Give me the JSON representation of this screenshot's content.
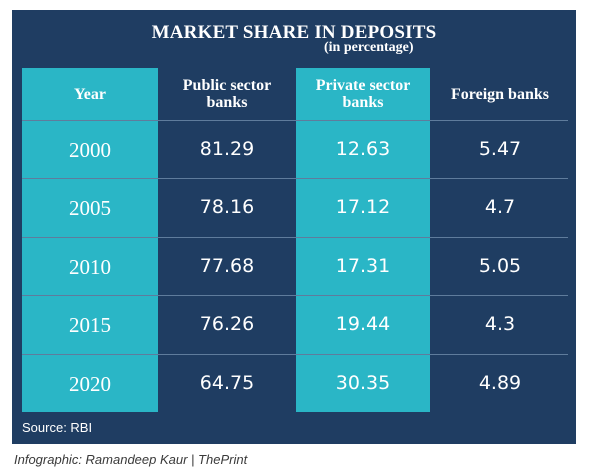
{
  "title": "MARKET SHARE IN DEPOSITS",
  "subtitle": "(in percentage)",
  "source": "Source: RBI",
  "credit": "Infographic: Ramandeep Kaur | ThePrint",
  "colors": {
    "panel": "#1f3d62",
    "accent_column": "#2ab6c6",
    "text": "#ffffff"
  },
  "chart_data": {
    "type": "table",
    "title": "MARKET SHARE IN DEPOSITS",
    "subtitle": "(in percentage)",
    "columns": [
      "Year",
      "Public sector banks",
      "Private sector banks",
      "Foreign banks"
    ],
    "header_lines": [
      [
        "Year"
      ],
      [
        "Public sector",
        "banks"
      ],
      [
        "Private sector",
        "banks"
      ],
      [
        "Foreign banks"
      ]
    ],
    "highlighted_columns": [
      0,
      2
    ],
    "rows": [
      [
        "2000",
        "81.29",
        "12.63",
        "5.47"
      ],
      [
        "2005",
        "78.16",
        "17.12",
        "4.7"
      ],
      [
        "2010",
        "77.68",
        "17.31",
        "5.05"
      ],
      [
        "2015",
        "76.26",
        "19.44",
        "4.3"
      ],
      [
        "2020",
        "64.75",
        "30.35",
        "4.89"
      ]
    ]
  }
}
